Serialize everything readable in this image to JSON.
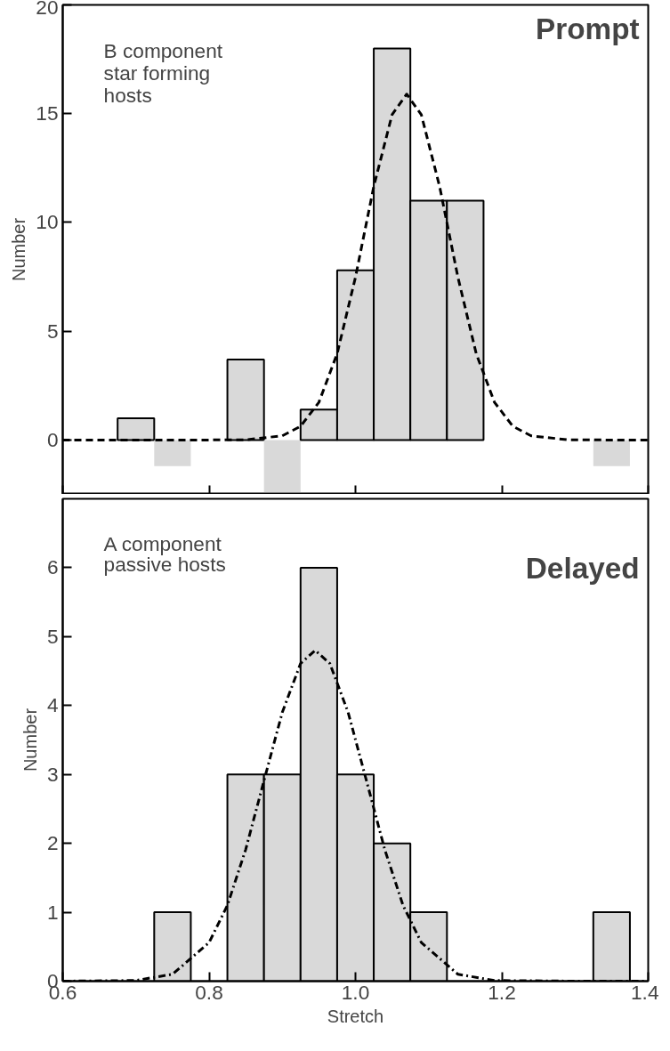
{
  "chart_data": [
    {
      "type": "histogram",
      "ylabel": "Number",
      "annotations": [
        "B component\nstar forming\nhosts",
        "Prompt"
      ],
      "bins": [
        0.625,
        0.675,
        0.725,
        0.775,
        0.825,
        0.875,
        0.925,
        0.975,
        1.025,
        1.075,
        1.125,
        1.175,
        1.225,
        1.275,
        1.325,
        1.375
      ],
      "values": [
        0,
        1,
        -1.2,
        0,
        3.7,
        -2.4,
        1.4,
        7.8,
        18,
        11,
        11,
        0,
        0,
        0,
        -1.2
      ],
      "color": "#d9d9d9",
      "series": [
        {
          "type": "line",
          "color": "#000000",
          "line_style": "dashed",
          "x": [
            0.6,
            0.8,
            0.85,
            0.9,
            0.925,
            0.95,
            0.975,
            1.0,
            1.025,
            1.05,
            1.07,
            1.09,
            1.115,
            1.14,
            1.165,
            1.19,
            1.215,
            1.24,
            1.29,
            1.34,
            1.4
          ],
          "values": [
            0,
            0,
            0.01,
            0.19,
            0.63,
            1.73,
            3.97,
            7.48,
            11.65,
            14.95,
            15.9,
            14.95,
            11.65,
            7.48,
            3.97,
            1.73,
            0.63,
            0.19,
            0.01,
            0,
            0
          ]
        }
      ],
      "xlim": [
        0.6,
        1.4
      ],
      "xticks": [
        0.6,
        0.8,
        1.0,
        1.2,
        1.4
      ],
      "ylim": [
        -2.5,
        20
      ],
      "yticks": [
        0,
        5,
        10,
        15,
        20
      ],
      "tick_labels": "y",
      "grid": false
    },
    {
      "type": "histogram",
      "xlabel": "Stretch",
      "ylabel": "Number",
      "annotations": [
        "A component\npassive hosts",
        "Delayed"
      ],
      "bins": [
        0.625,
        0.675,
        0.725,
        0.775,
        0.825,
        0.875,
        0.925,
        0.975,
        1.025,
        1.075,
        1.125,
        1.175,
        1.225,
        1.275,
        1.325,
        1.375
      ],
      "values": [
        0,
        0,
        1,
        0,
        3,
        3,
        6,
        3,
        2,
        1,
        0,
        0,
        0,
        0,
        1
      ],
      "color": "#d9d9d9",
      "series": [
        {
          "type": "line",
          "color": "#000000",
          "line_style": "dashdot",
          "x": [
            0.6,
            0.7,
            0.75,
            0.8,
            0.825,
            0.85,
            0.875,
            0.9,
            0.925,
            0.945,
            0.965,
            0.99,
            1.015,
            1.04,
            1.065,
            1.09,
            1.14,
            1.19,
            1.3,
            1.4
          ],
          "values": [
            0,
            0.01,
            0.1,
            0.56,
            1.1,
            1.91,
            2.91,
            3.9,
            4.61,
            4.8,
            4.61,
            3.9,
            2.91,
            1.91,
            1.1,
            0.56,
            0.1,
            0.01,
            0,
            0
          ]
        }
      ],
      "xlim": [
        0.6,
        1.4
      ],
      "xticks": [
        {
          "value": 0.6,
          "label": "0.6"
        },
        {
          "value": 0.8,
          "label": "0.8"
        },
        {
          "value": 1.0,
          "label": "1.0"
        },
        {
          "value": 1.2,
          "label": "1.2"
        },
        {
          "value": 1.4,
          "label": "1.4"
        }
      ],
      "ylim": [
        0,
        7
      ],
      "yticks": [
        0,
        1,
        2,
        3,
        4,
        5,
        6
      ],
      "grid": false
    }
  ]
}
